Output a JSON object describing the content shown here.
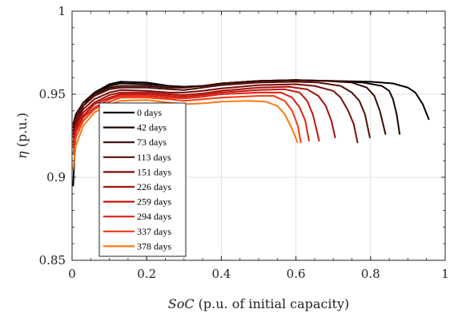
{
  "chart_data": {
    "type": "line",
    "xlabel": {
      "italic": "SoC",
      "rest": " (p.u. of initial capacity)"
    },
    "ylabel": {
      "italic": "η",
      "rest": " (p.u.)"
    },
    "xlim": [
      0,
      1
    ],
    "ylim": [
      0.85,
      1
    ],
    "xticks": [
      0,
      0.2,
      0.4,
      0.6,
      0.8,
      1
    ],
    "xtick_labels": [
      "0",
      "0.2",
      "0.4",
      "0.6",
      "0.8",
      "1"
    ],
    "yticks": [
      0.85,
      0.9,
      0.95,
      1
    ],
    "ytick_labels": [
      "0.85",
      "0.9",
      "0.95",
      "1"
    ],
    "grid": true,
    "legend_position": "center-left",
    "series": [
      {
        "name": "0 days",
        "color": "#000000",
        "points": [
          [
            0.003,
            0.895
          ],
          [
            0.01,
            0.93
          ],
          [
            0.03,
            0.943
          ],
          [
            0.06,
            0.951
          ],
          [
            0.1,
            0.956
          ],
          [
            0.13,
            0.9575
          ],
          [
            0.2,
            0.957
          ],
          [
            0.26,
            0.955
          ],
          [
            0.3,
            0.9545
          ],
          [
            0.35,
            0.955
          ],
          [
            0.4,
            0.9565
          ],
          [
            0.5,
            0.958
          ],
          [
            0.6,
            0.9585
          ],
          [
            0.7,
            0.958
          ],
          [
            0.8,
            0.9575
          ],
          [
            0.86,
            0.9565
          ],
          [
            0.9,
            0.954
          ],
          [
            0.92,
            0.951
          ],
          [
            0.94,
            0.944
          ],
          [
            0.956,
            0.935
          ]
        ]
      },
      {
        "name": "42 days",
        "color": "#1a0503",
        "points": [
          [
            0.003,
            0.93
          ],
          [
            0.01,
            0.937
          ],
          [
            0.03,
            0.945
          ],
          [
            0.06,
            0.951
          ],
          [
            0.1,
            0.955
          ],
          [
            0.13,
            0.9565
          ],
          [
            0.2,
            0.956
          ],
          [
            0.26,
            0.955
          ],
          [
            0.3,
            0.9545
          ],
          [
            0.35,
            0.955
          ],
          [
            0.4,
            0.9565
          ],
          [
            0.5,
            0.958
          ],
          [
            0.6,
            0.9585
          ],
          [
            0.7,
            0.958
          ],
          [
            0.78,
            0.957
          ],
          [
            0.83,
            0.955
          ],
          [
            0.85,
            0.952
          ],
          [
            0.86,
            0.947
          ],
          [
            0.87,
            0.938
          ],
          [
            0.878,
            0.926
          ]
        ]
      },
      {
        "name": "73 days",
        "color": "#3b0a06",
        "points": [
          [
            0.003,
            0.932
          ],
          [
            0.01,
            0.938
          ],
          [
            0.03,
            0.945
          ],
          [
            0.06,
            0.95
          ],
          [
            0.1,
            0.954
          ],
          [
            0.13,
            0.955
          ],
          [
            0.2,
            0.955
          ],
          [
            0.26,
            0.954
          ],
          [
            0.3,
            0.954
          ],
          [
            0.35,
            0.955
          ],
          [
            0.4,
            0.9565
          ],
          [
            0.5,
            0.958
          ],
          [
            0.6,
            0.9585
          ],
          [
            0.68,
            0.958
          ],
          [
            0.75,
            0.957
          ],
          [
            0.79,
            0.954
          ],
          [
            0.81,
            0.949
          ],
          [
            0.825,
            0.94
          ],
          [
            0.84,
            0.926
          ]
        ]
      },
      {
        "name": "113 days",
        "color": "#56100a",
        "points": [
          [
            0.003,
            0.928
          ],
          [
            0.01,
            0.935
          ],
          [
            0.03,
            0.943
          ],
          [
            0.06,
            0.949
          ],
          [
            0.1,
            0.953
          ],
          [
            0.13,
            0.954
          ],
          [
            0.2,
            0.954
          ],
          [
            0.26,
            0.953
          ],
          [
            0.3,
            0.9525
          ],
          [
            0.35,
            0.954
          ],
          [
            0.4,
            0.9555
          ],
          [
            0.5,
            0.957
          ],
          [
            0.6,
            0.9575
          ],
          [
            0.66,
            0.957
          ],
          [
            0.72,
            0.955
          ],
          [
            0.75,
            0.951
          ],
          [
            0.77,
            0.946
          ],
          [
            0.785,
            0.938
          ],
          [
            0.798,
            0.924
          ]
        ]
      },
      {
        "name": "151 days",
        "color": "#7a0d0a",
        "points": [
          [
            0.003,
            0.926
          ],
          [
            0.01,
            0.933
          ],
          [
            0.03,
            0.941
          ],
          [
            0.06,
            0.947
          ],
          [
            0.1,
            0.951
          ],
          [
            0.13,
            0.9525
          ],
          [
            0.2,
            0.952
          ],
          [
            0.26,
            0.951
          ],
          [
            0.3,
            0.951
          ],
          [
            0.35,
            0.952
          ],
          [
            0.4,
            0.9535
          ],
          [
            0.5,
            0.9555
          ],
          [
            0.6,
            0.956
          ],
          [
            0.65,
            0.955
          ],
          [
            0.7,
            0.952
          ],
          [
            0.72,
            0.948
          ],
          [
            0.74,
            0.94
          ],
          [
            0.755,
            0.932
          ],
          [
            0.765,
            0.921
          ]
        ]
      },
      {
        "name": "226 days",
        "color": "#a3120c",
        "points": [
          [
            0.003,
            0.924
          ],
          [
            0.01,
            0.931
          ],
          [
            0.03,
            0.939
          ],
          [
            0.06,
            0.945
          ],
          [
            0.1,
            0.9495
          ],
          [
            0.13,
            0.951
          ],
          [
            0.2,
            0.951
          ],
          [
            0.26,
            0.95
          ],
          [
            0.3,
            0.9495
          ],
          [
            0.35,
            0.9505
          ],
          [
            0.4,
            0.952
          ],
          [
            0.5,
            0.954
          ],
          [
            0.58,
            0.9545
          ],
          [
            0.63,
            0.953
          ],
          [
            0.66,
            0.949
          ],
          [
            0.68,
            0.943
          ],
          [
            0.695,
            0.934
          ],
          [
            0.705,
            0.924
          ]
        ]
      },
      {
        "name": "259 days",
        "color": "#c4150d",
        "points": [
          [
            0.003,
            0.921
          ],
          [
            0.01,
            0.929
          ],
          [
            0.03,
            0.937
          ],
          [
            0.06,
            0.944
          ],
          [
            0.1,
            0.948
          ],
          [
            0.13,
            0.95
          ],
          [
            0.2,
            0.95
          ],
          [
            0.26,
            0.949
          ],
          [
            0.3,
            0.9485
          ],
          [
            0.35,
            0.9495
          ],
          [
            0.4,
            0.951
          ],
          [
            0.5,
            0.9525
          ],
          [
            0.57,
            0.953
          ],
          [
            0.61,
            0.951
          ],
          [
            0.63,
            0.946
          ],
          [
            0.645,
            0.938
          ],
          [
            0.655,
            0.929
          ],
          [
            0.662,
            0.922
          ]
        ]
      },
      {
        "name": "294 days",
        "color": "#e0220f",
        "points": [
          [
            0.003,
            0.918
          ],
          [
            0.01,
            0.927
          ],
          [
            0.03,
            0.936
          ],
          [
            0.06,
            0.942
          ],
          [
            0.1,
            0.947
          ],
          [
            0.13,
            0.949
          ],
          [
            0.2,
            0.949
          ],
          [
            0.26,
            0.948
          ],
          [
            0.3,
            0.9475
          ],
          [
            0.35,
            0.9485
          ],
          [
            0.4,
            0.95
          ],
          [
            0.5,
            0.951
          ],
          [
            0.56,
            0.951
          ],
          [
            0.59,
            0.948
          ],
          [
            0.61,
            0.942
          ],
          [
            0.625,
            0.934
          ],
          [
            0.635,
            0.922
          ]
        ]
      },
      {
        "name": "337 days",
        "color": "#f23a12",
        "points": [
          [
            0.003,
            0.914
          ],
          [
            0.01,
            0.924
          ],
          [
            0.03,
            0.934
          ],
          [
            0.06,
            0.941
          ],
          [
            0.1,
            0.9455
          ],
          [
            0.13,
            0.948
          ],
          [
            0.2,
            0.948
          ],
          [
            0.26,
            0.947
          ],
          [
            0.3,
            0.946
          ],
          [
            0.35,
            0.947
          ],
          [
            0.4,
            0.948
          ],
          [
            0.5,
            0.949
          ],
          [
            0.54,
            0.949
          ],
          [
            0.57,
            0.946
          ],
          [
            0.59,
            0.94
          ],
          [
            0.605,
            0.931
          ],
          [
            0.613,
            0.921
          ]
        ]
      },
      {
        "name": "378 days",
        "color": "#ff7a10",
        "points": [
          [
            0.003,
            0.905
          ],
          [
            0.01,
            0.919
          ],
          [
            0.03,
            0.931
          ],
          [
            0.06,
            0.939
          ],
          [
            0.1,
            0.944
          ],
          [
            0.13,
            0.946
          ],
          [
            0.2,
            0.9465
          ],
          [
            0.26,
            0.945
          ],
          [
            0.3,
            0.944
          ],
          [
            0.35,
            0.9445
          ],
          [
            0.4,
            0.9455
          ],
          [
            0.47,
            0.946
          ],
          [
            0.52,
            0.9455
          ],
          [
            0.55,
            0.943
          ],
          [
            0.57,
            0.938
          ],
          [
            0.59,
            0.929
          ],
          [
            0.604,
            0.921
          ]
        ]
      }
    ]
  }
}
